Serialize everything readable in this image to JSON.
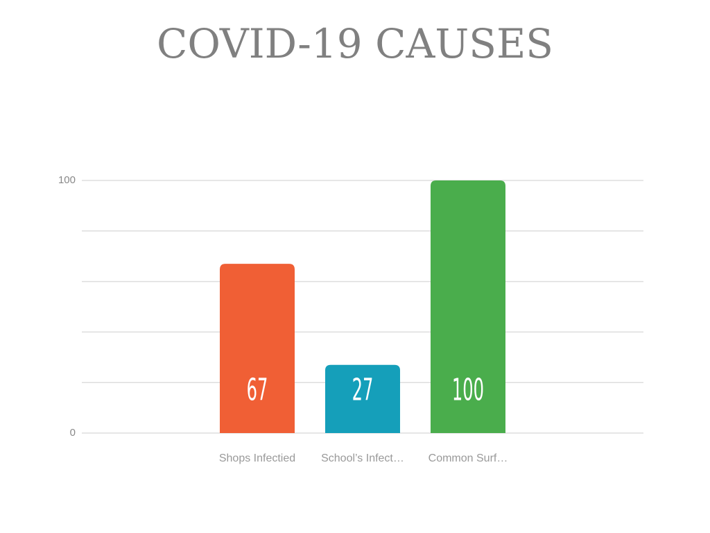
{
  "chart_data": {
    "type": "bar",
    "title": "COVID-19 CAUSES",
    "categories": [
      "Shops Infectied",
      "School’s Infect…",
      "Common Surf…"
    ],
    "values": [
      67,
      27,
      100
    ],
    "colors": [
      "#f05f35",
      "#159fba",
      "#4aad4c"
    ],
    "ylim": [
      0,
      100
    ],
    "yticks": [
      0,
      100
    ],
    "minor_yticks": [
      20,
      40,
      60,
      80
    ],
    "grid": true
  }
}
